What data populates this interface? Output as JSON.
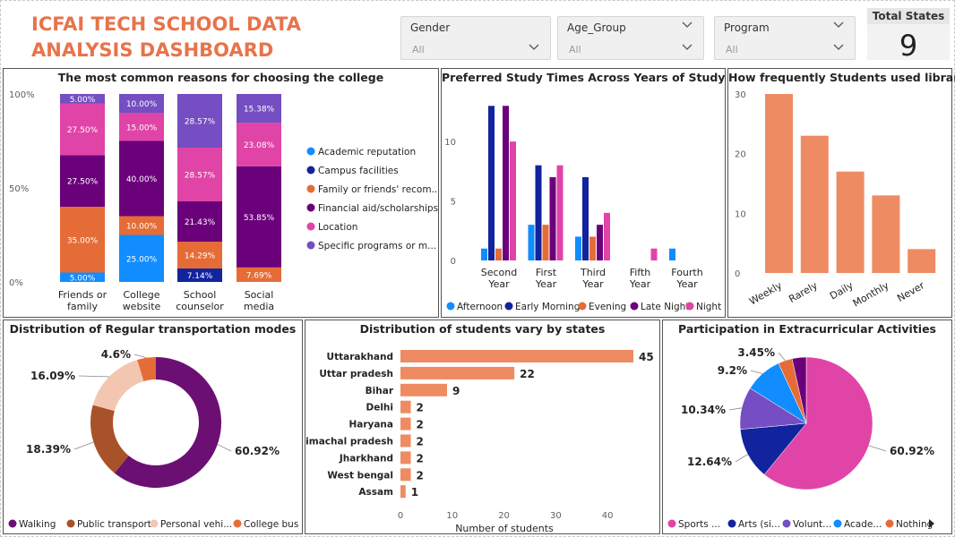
{
  "header": {
    "title": "ICFAI TECH SCHOOL DATA ANALYSIS DASHBOARD",
    "slicers": [
      {
        "label": "Gender",
        "value": "All"
      },
      {
        "label": "Age_Group",
        "value": "All"
      },
      {
        "label": "Program",
        "value": "All"
      }
    ],
    "card": {
      "title": "Total States",
      "value": "9"
    }
  },
  "colors": {
    "title": "#e8734a",
    "academic": "#118dff",
    "campus": "#12239e",
    "family": "#e66c37",
    "financial": "#6b007b",
    "location": "#e044a7",
    "specific": "#744ec2",
    "bar": "#ee8b63",
    "walking": "#6b0f73",
    "public": "#a8522a",
    "personal": "#f3c6b1",
    "bus": "#e66c37"
  },
  "chart_data": [
    {
      "id": "reasons",
      "type": "bar",
      "stacked": "100%",
      "title": "The most common reasons for choosing the college",
      "categories": [
        "Friends or family",
        "College website",
        "School counselor",
        "Social media"
      ],
      "y_ticks": [
        "0%",
        "50%",
        "100%"
      ],
      "series": [
        {
          "name": "Academic reputation",
          "color": "#118dff",
          "values": [
            5.0,
            25.0,
            0,
            0
          ]
        },
        {
          "name": "Campus facilities",
          "color": "#12239e",
          "values": [
            0,
            0,
            7.14,
            0
          ]
        },
        {
          "name": "Family or friends' recom...",
          "color": "#e66c37",
          "values": [
            35.0,
            10.0,
            14.29,
            7.69
          ]
        },
        {
          "name": "Financial aid/scholarships",
          "color": "#6b007b",
          "values": [
            27.5,
            40.0,
            21.43,
            53.85
          ]
        },
        {
          "name": "Location",
          "color": "#e044a7",
          "values": [
            27.5,
            15.0,
            28.57,
            23.08
          ]
        },
        {
          "name": "Specific programs or m...",
          "color": "#744ec2",
          "values": [
            5.0,
            10.0,
            28.57,
            15.38
          ]
        }
      ]
    },
    {
      "id": "study_times",
      "type": "bar",
      "title": "Preferred Study Times Across Years of Study",
      "categories": [
        "Second Year",
        "First Year",
        "Third Year",
        "Fifth Year",
        "Fourth Year"
      ],
      "ylim": [
        0,
        14
      ],
      "y_ticks": [
        0,
        5,
        10
      ],
      "series": [
        {
          "name": "Afternoon",
          "color": "#118dff",
          "values": [
            1,
            3,
            2,
            0,
            1
          ]
        },
        {
          "name": "Early Morning",
          "color": "#12239e",
          "values": [
            13,
            8,
            7,
            0,
            0
          ]
        },
        {
          "name": "Evening",
          "color": "#e66c37",
          "values": [
            1,
            3,
            2,
            0,
            0
          ]
        },
        {
          "name": "Late Night",
          "color": "#6b007b",
          "values": [
            13,
            7,
            3,
            0,
            0
          ]
        },
        {
          "name": "Night",
          "color": "#e044a7",
          "values": [
            10,
            8,
            4,
            1,
            0
          ]
        }
      ]
    },
    {
      "id": "library",
      "type": "bar",
      "title": "How frequently Students used library",
      "categories": [
        "Weekly",
        "Rarely",
        "Daily",
        "Monthly",
        "Never"
      ],
      "values": [
        30,
        23,
        17,
        13,
        4
      ],
      "ylim": [
        0,
        30
      ],
      "y_ticks": [
        0,
        10,
        20,
        30
      ]
    },
    {
      "id": "transport",
      "type": "pie",
      "donut": true,
      "title": "Distribution of Regular transportation modes",
      "labels": [
        "Walking",
        "Public transport",
        "Personal vehi...",
        "College bus"
      ],
      "values": [
        60.92,
        18.39,
        16.09,
        4.6
      ],
      "value_labels": [
        "60.92%",
        "18.39%",
        "16.09%",
        "4.6%"
      ]
    },
    {
      "id": "states",
      "type": "bar",
      "orientation": "horizontal",
      "title": "Distribution of students vary by states",
      "categories": [
        "Uttarakhand",
        "Uttar pradesh",
        "Bihar",
        "Delhi",
        "Haryana",
        "Himachal pradesh",
        "Jharkhand",
        "West bengal",
        "Assam"
      ],
      "values": [
        45,
        22,
        9,
        2,
        2,
        2,
        2,
        2,
        1
      ],
      "xlim": [
        0,
        45
      ],
      "x_ticks": [
        0,
        10,
        20,
        30,
        40
      ],
      "xlabel": "Number of students"
    },
    {
      "id": "extracurricular",
      "type": "pie",
      "title": "Participation in Extracurricular Activities",
      "labels": [
        "Sports ...",
        "Arts (si...",
        "Volunt...",
        "Acade...",
        "Nothing"
      ],
      "values": [
        60.92,
        12.64,
        10.34,
        9.2,
        3.45
      ],
      "value_labels": [
        "60.92%",
        "12.64%",
        "10.34%",
        "9.2%",
        "3.45%"
      ],
      "extra_slice": {
        "value": 3.45,
        "color": "#6b007b"
      }
    }
  ]
}
